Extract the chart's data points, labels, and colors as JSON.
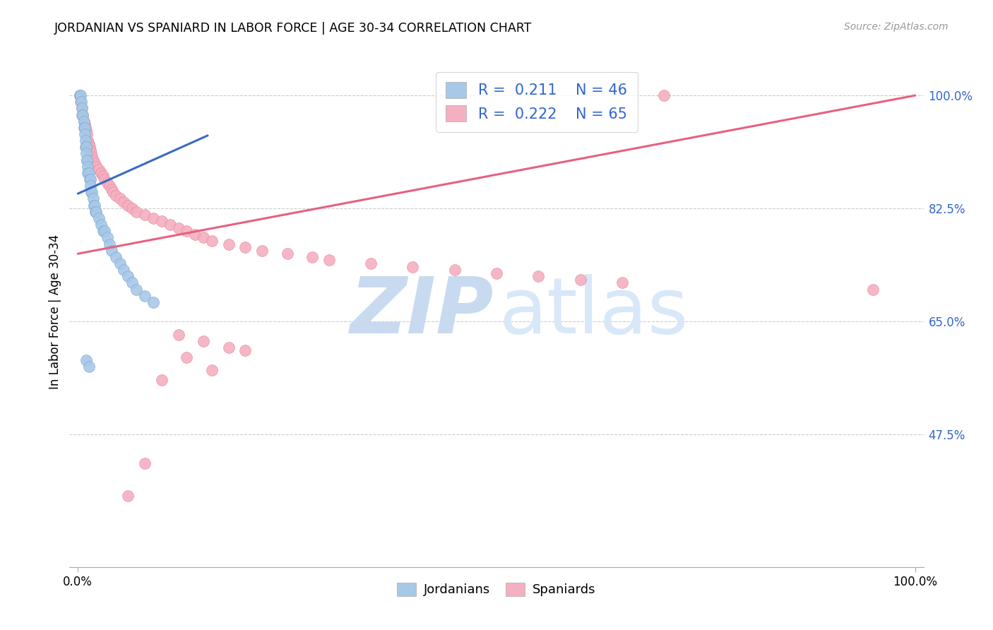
{
  "title": "JORDANIAN VS SPANIARD IN LABOR FORCE | AGE 30-34 CORRELATION CHART",
  "source": "Source: ZipAtlas.com",
  "ylabel": "In Labor Force | Age 30-34",
  "blue_R": "0.211",
  "blue_N": "46",
  "pink_R": "0.222",
  "pink_N": "65",
  "blue_color": "#a8c8e8",
  "blue_edge_color": "#7aaad0",
  "blue_line_color": "#3a6bbf",
  "pink_color": "#f4b0c0",
  "pink_edge_color": "#e88aa0",
  "pink_line_color": "#e86080",
  "grid_color": "#cccccc",
  "ytick_color": "#3366cc",
  "source_color": "#999999",
  "watermark_zip_color": "#c8daf0",
  "watermark_atlas_color": "#d8e8f8",
  "xlim": [
    -0.01,
    1.01
  ],
  "ylim": [
    0.27,
    1.06
  ],
  "yticks": [
    0.475,
    0.65,
    0.825,
    1.0
  ],
  "ytick_labels": [
    "47.5%",
    "65.0%",
    "82.5%",
    "100.0%"
  ],
  "blue_line_x": [
    0.0,
    0.155
  ],
  "blue_line_y": [
    0.848,
    0.938
  ],
  "pink_line_x": [
    0.0,
    1.0
  ],
  "pink_line_y": [
    0.755,
    1.0
  ],
  "jordan_x": [
    0.002,
    0.003,
    0.004,
    0.005,
    0.005,
    0.006,
    0.007,
    0.007,
    0.008,
    0.008,
    0.009,
    0.009,
    0.01,
    0.01,
    0.011,
    0.011,
    0.012,
    0.012,
    0.013,
    0.014,
    0.015,
    0.015,
    0.016,
    0.017,
    0.018,
    0.019,
    0.02,
    0.021,
    0.022,
    0.025,
    0.028,
    0.03,
    0.032,
    0.035,
    0.038,
    0.04,
    0.045,
    0.05,
    0.055,
    0.06,
    0.065,
    0.07,
    0.08,
    0.09,
    0.01,
    0.013
  ],
  "jordan_y": [
    1.0,
    1.0,
    0.99,
    0.98,
    0.97,
    0.97,
    0.96,
    0.95,
    0.95,
    0.94,
    0.93,
    0.92,
    0.92,
    0.91,
    0.9,
    0.9,
    0.89,
    0.88,
    0.88,
    0.87,
    0.87,
    0.86,
    0.85,
    0.85,
    0.84,
    0.83,
    0.83,
    0.82,
    0.82,
    0.81,
    0.8,
    0.79,
    0.79,
    0.78,
    0.77,
    0.76,
    0.75,
    0.74,
    0.73,
    0.72,
    0.71,
    0.7,
    0.69,
    0.68,
    0.59,
    0.58
  ],
  "spain_x": [
    0.002,
    0.003,
    0.005,
    0.006,
    0.007,
    0.008,
    0.009,
    0.01,
    0.011,
    0.012,
    0.013,
    0.014,
    0.015,
    0.016,
    0.017,
    0.018,
    0.02,
    0.022,
    0.025,
    0.028,
    0.03,
    0.032,
    0.035,
    0.038,
    0.04,
    0.042,
    0.045,
    0.05,
    0.055,
    0.06,
    0.065,
    0.07,
    0.08,
    0.09,
    0.1,
    0.11,
    0.12,
    0.13,
    0.14,
    0.15,
    0.16,
    0.18,
    0.2,
    0.22,
    0.25,
    0.28,
    0.3,
    0.35,
    0.4,
    0.45,
    0.5,
    0.55,
    0.6,
    0.65,
    0.7,
    0.95,
    0.12,
    0.15,
    0.18,
    0.2,
    0.13,
    0.16,
    0.1,
    0.08,
    0.06
  ],
  "spain_y": [
    1.0,
    0.99,
    0.98,
    0.97,
    0.96,
    0.955,
    0.95,
    0.945,
    0.94,
    0.93,
    0.925,
    0.92,
    0.915,
    0.91,
    0.905,
    0.9,
    0.895,
    0.89,
    0.885,
    0.88,
    0.875,
    0.87,
    0.865,
    0.86,
    0.855,
    0.85,
    0.845,
    0.84,
    0.835,
    0.83,
    0.825,
    0.82,
    0.815,
    0.81,
    0.805,
    0.8,
    0.795,
    0.79,
    0.785,
    0.78,
    0.775,
    0.77,
    0.765,
    0.76,
    0.755,
    0.75,
    0.745,
    0.74,
    0.735,
    0.73,
    0.725,
    0.72,
    0.715,
    0.71,
    1.0,
    0.7,
    0.63,
    0.62,
    0.61,
    0.605,
    0.595,
    0.575,
    0.56,
    0.43,
    0.38
  ]
}
